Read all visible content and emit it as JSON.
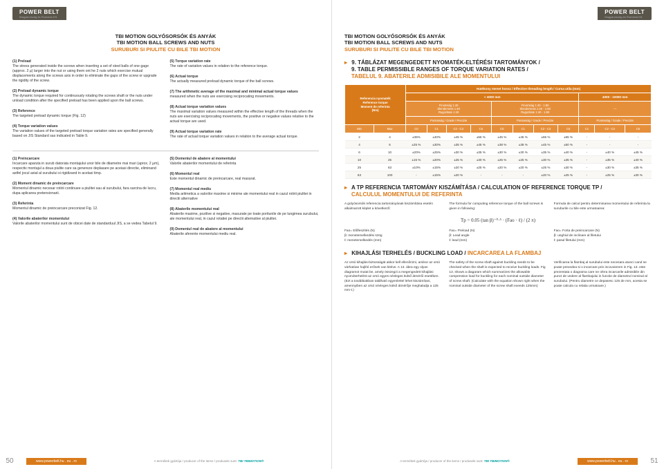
{
  "brand": "POWER BELT",
  "brand_sub": "Magyarország és Románia Kft.",
  "section_title": {
    "hu": "TBI MOTION GOLYÓSORSÓK ÉS ANYÁK",
    "en": "TBI MOTION BALL SCREWS AND NUTS",
    "ro": "SURUBURI SI PIULITE CU BILE TBI MOTION"
  },
  "left_paras_colA": [
    {
      "lead": "(1) Preload",
      "body": "The stress generated inside the screws when inserting a set of steel balls of one gage (approx. 2 µ) larger into the nut or using them ont he 2 nuts which exercise mutual displacements along the screws axis in order to eliminate the gaps of the screw or upgrade the rigidity of the screw."
    },
    {
      "lead": "(2) Preload dynamic torque",
      "body": "The dynamic torque required for continuously rotating the screws shaft or the nuts under unload condition after the specified preload has been applied upon the ball screws."
    },
    {
      "lead": "(3) Reference",
      "body": "The targeted preload dynamic torque (Fig. 12)"
    },
    {
      "lead": "(4) Torque variation values",
      "body": "The variation values of the targeted preload torque variation rates are specified generally based on JIS Standard sas indicated in Table 9."
    }
  ],
  "left_paras_colB": [
    {
      "lead": "(5) Torque variation rate",
      "body": "The rate of variation values in relation to the reference torque."
    },
    {
      "lead": "(6) Actual torque",
      "body": "The actually measured preload dynamic torque of the ball screws."
    },
    {
      "lead": "(7) The arithmetic average of the maximal and minimal actual torque values",
      "body": " measured when the nuts are exercising reciprocating movements."
    },
    {
      "lead": "(8) Actual torque variation values",
      "body": "The maximal variation values measured within the effective length of the threads when the nuts are exercising reciprocating movements, the positive or negative values relative to the actual torque are used."
    },
    {
      "lead": "(9) Actual torque variation rate",
      "body": "The rate of actual torque variation values in relation to the average actual torque."
    }
  ],
  "left_paras2_colA": [
    {
      "lead": "(1) Preincarcare",
      "body": "Incarcare aparuta in surub datorata montajului unor bile de diiametre mai mari (aprox. 2 µm), respectiv montajul a doua piulite care sa genereze deplasare pe aceiasi directie, eliminand astfel jocul axial al surubului si rigidizand in acelasi timp."
    },
    {
      "lead": "(2) Moment dinamic de preincarcare",
      "body": "Momentul dinamic necesar rotirii continuee a piulitei sau al surubului, fara sarcina de lucru, dupa aplicarea pretensionarii."
    },
    {
      "lead": "(3) Referinta",
      "body": "Momentul dinamic de preincarcare preconizat Fig. 12."
    },
    {
      "lead": "(4) Valorile abaterilor momentului",
      "body": "Valorile abaterilor momentului sunt de obicei date de standarduul JIS, a se vedea Tabelul 9."
    }
  ],
  "left_paras2_colB": [
    {
      "lead": "(5) Domeniul de abatere al momentului",
      "body": "Valorile abaterilor momentului de referinta"
    },
    {
      "lead": "(6) Momentul real",
      "body": "Este momentul dinamic de preincarcare, real masurat."
    },
    {
      "lead": "(7) Momentul real mediu",
      "body": "Media aritmetica a valorilor maxime si minime ale momentului real in cazul rotirii piulitei in directii alternative"
    },
    {
      "lead": "(8) Abaterile momentului real",
      "body": "Abaterile maxime, pozitive si negative, masurate pe toate portiunile de pe lungimea surubului, ale momentului real, in cazul rotatiei pe directii alternative al piulitei."
    },
    {
      "lead": "(9) Domeniul real de abatere al momentului",
      "body": "Abaterile aferente momentului mediu real."
    }
  ],
  "table9_head": {
    "hu": "9. TÁBLÁZAT MEGENGEDETT NYOMATÉK-ELTÉRÉSI TARTOMÁNYOK /",
    "en": "9. TABLE PERMISSIBLE RANGES OF TORQUE VARIATION RATES /",
    "ro": "TABELUL 9. ABATERILE ADMISIBILE ALE MOMENTULUI"
  },
  "table9_topheader": "Hatékony menet hossz / Effective threading length / Cursa utila (mm)",
  "table9_sidelabel": "Referencia nyomaték\nReference torque\nMoment de referinta\n(Nm)",
  "table9_col_groups": [
    "< 4000 mm",
    "4000 - 10000 mm"
  ],
  "table9_sub_groups": [
    "Finomság 1:40\nSlenderness 1:40\nRugozitate 1:40",
    "Finomság 1:40 - 1:60\nSlenderness 1:40 - 1:60\nRugozitate 1:40 - 1:60",
    "—"
  ],
  "table9_precision": "Pontosság / Grade / Precizie",
  "table9_cols": [
    "Min",
    "Max",
    "C0",
    "C1",
    "C2 - C3",
    "C5",
    "C0",
    "C1",
    "C2 - C3",
    "C5",
    "C1",
    "C2 - C3",
    "C5"
  ],
  "table9_rows": [
    [
      "2",
      "4",
      "±35%",
      "±40%",
      "±45 %",
      "±55 %",
      "±45 %",
      "±45 %",
      "±55 %",
      "±65 %",
      "-",
      "-",
      "-"
    ],
    [
      "4",
      "6",
      "±25 %",
      "±30%",
      "±35 %",
      "±45 %",
      "±38 %",
      "±38 %",
      "±45 %",
      "±50 %",
      "-",
      "-",
      "-"
    ],
    [
      "6",
      "10",
      "±20%",
      "±25%",
      "±30 %",
      "±35 %",
      "±30 %",
      "±30 %",
      "±35 %",
      "±40 %",
      "-",
      "±40 %",
      "±45 %"
    ],
    [
      "10",
      "25",
      "±15 %",
      "±20%",
      "±25 %",
      "±30 %",
      "±25 %",
      "±25 %",
      "±30 %",
      "±35 %",
      "-",
      "±35 %",
      "±40 %"
    ],
    [
      "25",
      "63",
      "±10%",
      "±15%",
      "±20 %",
      "±25 %",
      "±20 %",
      "±20 %",
      "±25 %",
      "±30 %",
      "-",
      "±30 %",
      "±35 %"
    ],
    [
      "63",
      "100",
      "-",
      "±15%",
      "±20 %",
      "-",
      "-",
      "-",
      "±20 %",
      "±25 %",
      "-",
      "±25 %",
      "±30 %"
    ]
  ],
  "tp_head": {
    "hu": "A TP REFERENCIA TARTOMÁNY KISZÁMÍTÁSA / ",
    "en": "CALCULATION OF REFERENCE TORQUE TP / ",
    "ro": "CALCULUL MOMENTULUI DE REFERINTA"
  },
  "tp_intro": [
    "A golyósorsók referencia tartományának kiszámítása esetén alkalmazott képlet a következő:",
    "The formula for computing reference torque of the ball screws is given in following:",
    "Formula de calcul pentru determinarea momentului de referinta la suruburile cu bile este urmatoarea:"
  ],
  "tp_formula": "Tp = 0.05 (tan β)⁻⁰·⁵ · (Fao · ℓ) / (2 π)",
  "tp_legend": [
    [
      "Fao= Előfeszítés (N)",
      "β: menetemelkedési szög",
      "ℓ: menetemelkedés (mm)"
    ],
    [
      "Fao= Preload (N)",
      "β: Lead angle",
      "ℓ: lead (mm)"
    ],
    [
      "Fao= Forta de preincarcare (N)",
      "β: unghiul de inclinare al filetului",
      "ℓ: pasul filetului (mm)"
    ]
  ],
  "buckling_head": {
    "hu": "KIHAJLÁSI TERHELÉS / ",
    "en": "BUCKLING LOAD / ",
    "ro": "INCARCAREA LA FLAMBAJ"
  },
  "buckling_text": [
    "Az orsó kihajlás-biztosságát akkor kell ellenőrizni, amikor az orsó várhatóan hajlító erőnek van kitéve. A 13. ábra egy olyan diagramot mutat be, amely összegzi a megengedett kihajlási nyomóterhelést az orsó egyes névleges külső átmérői esetében. (Ezt a továbbiakban található egyenlettel lehet kiszámítani, amennyiben az orsó névleges külső átmérője meghaladja a 125 mm-t.)",
    "The safety of the screw shaft against buckling needs to be checked when the shaft is expected to receive buckling loads. Fig 13. shows a diagaram which summarizes the allowable compressive load for buckling for each nominal outside diameter of screw shaft. (Calculate with the equation shown right when the nominal outside diameter of the screw shaft exeeds 125mm)",
    "Verificarea la flambaj al surubului este necesara atunci cand se poate prevedea si o incarcare prin incovoierem in Fig. 13. este prezentata o diagrama care ne ofera incarcarile admisibile din punct de vedere al flambajului in functie de diametrul nominal al surubului. (Pentru diametre ce depasesc 125 de mm, acesta se poate calcula cu relatia urmatoare.)"
  ],
  "producer_text": "A termékek gyártója / producer of the items / produsele sunt:",
  "producer_brand": "TBIMOTION®",
  "url": "www.powerbelt.hu . eu . ro",
  "page_left": "50",
  "page_right": "51"
}
